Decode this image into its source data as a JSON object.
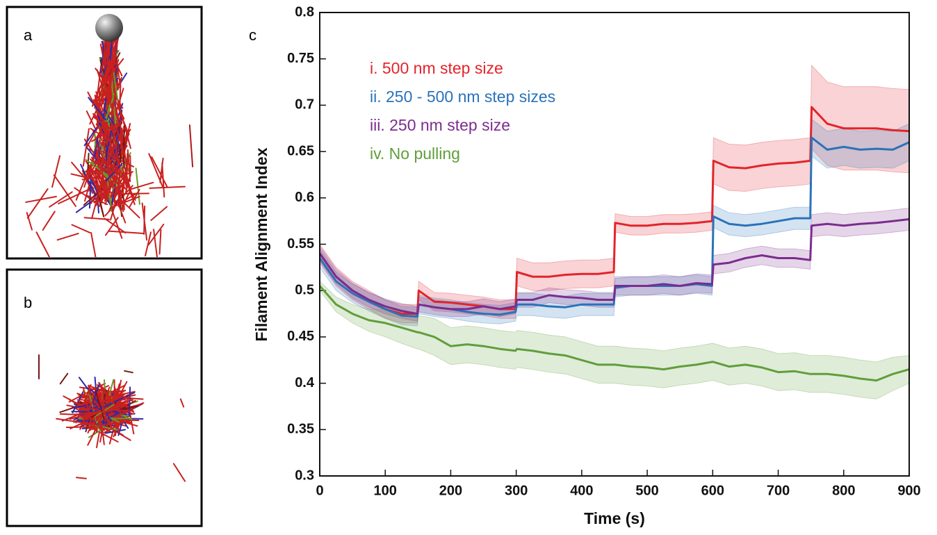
{
  "figure": {
    "panel_labels": [
      "a",
      "b",
      "c"
    ]
  },
  "chart_data": {
    "type": "line",
    "x_label": "Time (s)",
    "y_label": "Filament Alignment Index",
    "x": [
      0,
      25,
      50,
      75,
      100,
      125,
      149,
      151,
      175,
      200,
      225,
      250,
      275,
      299,
      301,
      325,
      350,
      375,
      400,
      425,
      449,
      451,
      475,
      500,
      525,
      550,
      575,
      599,
      601,
      625,
      650,
      675,
      700,
      725,
      749,
      751,
      775,
      800,
      825,
      850,
      875,
      900
    ],
    "xlim": [
      0,
      900
    ],
    "xticks": [
      0,
      100,
      200,
      300,
      400,
      500,
      600,
      700,
      800,
      900
    ],
    "ylim": [
      0.3,
      0.8
    ],
    "yticks": [
      0.3,
      0.35,
      0.4,
      0.45,
      0.5,
      0.55,
      0.6,
      0.65,
      0.7,
      0.75,
      0.8
    ],
    "legend": "upper left",
    "series": [
      {
        "name": "i. 500 nm step size",
        "color": "#e2242b",
        "values": [
          0.54,
          0.515,
          0.5,
          0.49,
          0.48,
          0.475,
          0.475,
          0.5,
          0.488,
          0.487,
          0.485,
          0.483,
          0.48,
          0.48,
          0.52,
          0.515,
          0.515,
          0.517,
          0.518,
          0.518,
          0.52,
          0.573,
          0.57,
          0.57,
          0.572,
          0.572,
          0.573,
          0.575,
          0.64,
          0.633,
          0.632,
          0.635,
          0.637,
          0.638,
          0.64,
          0.698,
          0.68,
          0.675,
          0.675,
          0.675,
          0.673,
          0.672
        ],
        "errors": [
          0.01,
          0.01,
          0.01,
          0.01,
          0.01,
          0.01,
          0.01,
          0.01,
          0.01,
          0.01,
          0.01,
          0.01,
          0.01,
          0.01,
          0.015,
          0.015,
          0.015,
          0.015,
          0.015,
          0.015,
          0.015,
          0.01,
          0.01,
          0.01,
          0.01,
          0.01,
          0.01,
          0.01,
          0.025,
          0.025,
          0.025,
          0.025,
          0.025,
          0.025,
          0.025,
          0.045,
          0.045,
          0.045,
          0.045,
          0.045,
          0.045,
          0.045
        ]
      },
      {
        "name": "ii. 250 - 500 nm step sizes",
        "color": "#2a72b8",
        "values": [
          0.535,
          0.51,
          0.497,
          0.488,
          0.48,
          0.473,
          0.472,
          0.485,
          0.482,
          0.48,
          0.477,
          0.475,
          0.474,
          0.477,
          0.485,
          0.485,
          0.483,
          0.482,
          0.485,
          0.485,
          0.485,
          0.503,
          0.505,
          0.505,
          0.505,
          0.505,
          0.507,
          0.505,
          0.58,
          0.572,
          0.57,
          0.572,
          0.575,
          0.578,
          0.578,
          0.665,
          0.652,
          0.655,
          0.652,
          0.653,
          0.652,
          0.66
        ],
        "errors": [
          0.01,
          0.01,
          0.01,
          0.01,
          0.01,
          0.01,
          0.01,
          0.01,
          0.01,
          0.01,
          0.01,
          0.01,
          0.01,
          0.01,
          0.012,
          0.012,
          0.012,
          0.012,
          0.012,
          0.012,
          0.012,
          0.01,
          0.01,
          0.01,
          0.01,
          0.01,
          0.01,
          0.01,
          0.012,
          0.012,
          0.012,
          0.012,
          0.012,
          0.012,
          0.012,
          0.02,
          0.02,
          0.02,
          0.02,
          0.02,
          0.02,
          0.02
        ]
      },
      {
        "name": "iii. 250 nm step size",
        "color": "#7b2d8e",
        "values": [
          0.54,
          0.515,
          0.5,
          0.49,
          0.483,
          0.478,
          0.475,
          0.485,
          0.482,
          0.48,
          0.48,
          0.483,
          0.48,
          0.483,
          0.49,
          0.49,
          0.495,
          0.493,
          0.492,
          0.49,
          0.49,
          0.505,
          0.505,
          0.505,
          0.507,
          0.505,
          0.508,
          0.507,
          0.528,
          0.53,
          0.535,
          0.538,
          0.535,
          0.535,
          0.533,
          0.57,
          0.572,
          0.57,
          0.572,
          0.573,
          0.575,
          0.577
        ],
        "errors": [
          0.008,
          0.008,
          0.008,
          0.008,
          0.008,
          0.008,
          0.008,
          0.008,
          0.008,
          0.008,
          0.008,
          0.008,
          0.008,
          0.008,
          0.008,
          0.008,
          0.008,
          0.008,
          0.008,
          0.008,
          0.008,
          0.01,
          0.01,
          0.01,
          0.01,
          0.01,
          0.01,
          0.01,
          0.01,
          0.01,
          0.01,
          0.01,
          0.01,
          0.01,
          0.01,
          0.012,
          0.012,
          0.012,
          0.012,
          0.012,
          0.012,
          0.012
        ]
      },
      {
        "name": "iv. No pulling",
        "color": "#5f9e3a",
        "values": [
          0.505,
          0.485,
          0.475,
          0.468,
          0.465,
          0.46,
          0.455,
          0.455,
          0.45,
          0.44,
          0.442,
          0.44,
          0.437,
          0.435,
          0.437,
          0.435,
          0.432,
          0.43,
          0.425,
          0.42,
          0.42,
          0.42,
          0.418,
          0.417,
          0.415,
          0.418,
          0.42,
          0.423,
          0.423,
          0.418,
          0.42,
          0.417,
          0.412,
          0.413,
          0.41,
          0.41,
          0.41,
          0.408,
          0.405,
          0.403,
          0.41,
          0.415
        ],
        "errors": [
          0.005,
          0.008,
          0.01,
          0.012,
          0.015,
          0.017,
          0.018,
          0.018,
          0.02,
          0.02,
          0.02,
          0.02,
          0.02,
          0.02,
          0.02,
          0.02,
          0.02,
          0.02,
          0.02,
          0.02,
          0.02,
          0.02,
          0.02,
          0.02,
          0.02,
          0.02,
          0.02,
          0.02,
          0.02,
          0.02,
          0.02,
          0.02,
          0.02,
          0.02,
          0.02,
          0.02,
          0.02,
          0.02,
          0.02,
          0.02,
          0.018,
          0.015
        ]
      }
    ]
  }
}
